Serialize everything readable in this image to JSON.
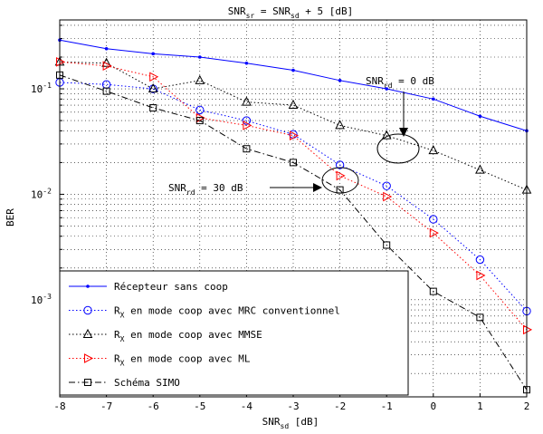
{
  "chart_data": {
    "type": "line",
    "title": {
      "pre": "SNR",
      "sub1": "sr",
      "mid": " = SNR",
      "sub2": "sd",
      "post": " +  5  [dB]"
    },
    "xlabel": {
      "pre": "SNR",
      "sub": "sd",
      "post": "  [dB]"
    },
    "ylabel": "BER",
    "xlim": [
      -8,
      2
    ],
    "ylim": [
      0.00012,
      0.45
    ],
    "yscale": "log",
    "grid": true,
    "x_ticks": [
      "-8",
      "-7",
      "-6",
      "-5",
      "-4",
      "-3",
      "-2",
      "-1",
      "0",
      "1",
      "2"
    ],
    "y_ticks": [
      {
        "base": "10",
        "exp": "-1",
        "value": 0.1
      },
      {
        "base": "10",
        "exp": "-2",
        "value": 0.01
      },
      {
        "base": "10",
        "exp": "-3",
        "value": 0.001
      }
    ],
    "legend_position": "bottom-left",
    "series": [
      {
        "name": "Récepteur sans coop",
        "name_parts": {
          "pre": "Récepteur sans coop"
        },
        "color": "#0000ff",
        "dash": "solid",
        "marker": "dot",
        "x": [
          -8,
          -7,
          -6,
          -5,
          -4,
          -3,
          -2,
          -1,
          0,
          1,
          2
        ],
        "y": [
          0.29,
          0.24,
          0.215,
          0.2,
          0.175,
          0.15,
          0.12,
          0.1,
          0.08,
          0.055,
          0.04
        ]
      },
      {
        "name": "RX en mode coop avec MRC conventionnel",
        "name_parts": {
          "pre": "R",
          "sub": "X",
          "post": " en mode coop avec MRC conventionnel"
        },
        "color": "#0000ff",
        "dash": "dotted",
        "marker": "circle",
        "x": [
          -8,
          -7,
          -6,
          -5,
          -4,
          -3,
          -2,
          -1,
          0,
          1,
          2
        ],
        "y": [
          0.115,
          0.11,
          0.1,
          0.063,
          0.05,
          0.037,
          0.019,
          0.012,
          0.0058,
          0.0024,
          0.00078
        ]
      },
      {
        "name": "RX en mode coop avec MMSE",
        "name_parts": {
          "pre": "R",
          "sub": "X",
          "post": " en mode coop avec MMSE"
        },
        "color": "#000000",
        "dash": "dotted",
        "marker": "triangle",
        "x": [
          -8,
          -7,
          -6,
          -5,
          -4,
          -3,
          -2,
          -1,
          0,
          1,
          2
        ],
        "y": [
          0.18,
          0.175,
          0.1,
          0.12,
          0.075,
          0.07,
          0.045,
          0.036,
          0.026,
          0.017,
          0.011
        ]
      },
      {
        "name": "RX en mode coop avec ML",
        "name_parts": {
          "pre": "R",
          "sub": "X",
          "post": " en mode coop avec ML"
        },
        "color": "#ff0000",
        "dash": "dotted",
        "marker": "triangle-right",
        "x": [
          -8,
          -7,
          -6,
          -5,
          -4,
          -3,
          -2,
          -1,
          0,
          1,
          2
        ],
        "y": [
          0.18,
          0.165,
          0.13,
          0.053,
          0.045,
          0.036,
          0.015,
          0.0095,
          0.0043,
          0.0017,
          0.00052
        ]
      },
      {
        "name": "Schéma SIMO",
        "name_parts": {
          "pre": "Schéma SIMO"
        },
        "color": "#000000",
        "dash": "dashdot",
        "marker": "square",
        "x": [
          -8,
          -7,
          -6,
          -5,
          -4,
          -3,
          -2,
          -1,
          0,
          1,
          2
        ],
        "y": [
          0.135,
          0.095,
          0.066,
          0.05,
          0.027,
          0.02,
          0.011,
          0.0033,
          0.0012,
          0.00068,
          0.00014
        ]
      }
    ],
    "annotations": [
      {
        "pre": "SNR",
        "sub": "rd",
        "post": " =  0 dB"
      },
      {
        "pre": "SNR",
        "sub": "rd",
        "post": " = 30 dB"
      }
    ]
  }
}
